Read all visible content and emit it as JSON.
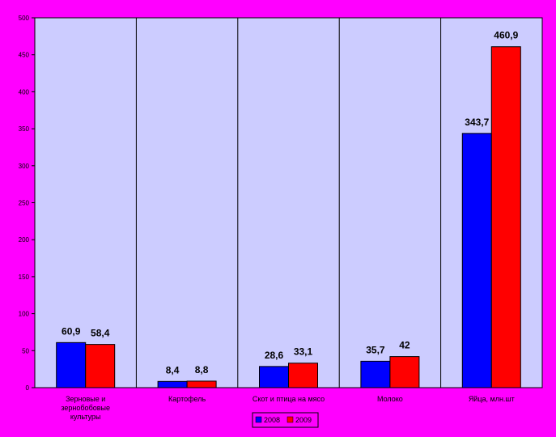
{
  "chart_data": {
    "type": "bar",
    "title": "",
    "xlabel": "",
    "ylabel": "",
    "ylim": [
      0,
      500
    ],
    "ytick_step": 50,
    "grid": false,
    "legend_position": "bottom",
    "categories": [
      "Зерновые и зернобобовые культуры",
      "Картофель",
      "Скот и птица на мясо",
      "Молоко",
      "Яйца, млн.шт"
    ],
    "category_lines": [
      [
        "Зерновые и",
        "зернобобовые",
        "культуры"
      ],
      [
        "Картофель"
      ],
      [
        "Скот и птица на мясо"
      ],
      [
        "Молоко"
      ],
      [
        "Яйца, млн.шт"
      ]
    ],
    "series": [
      {
        "name": "2008",
        "color": "#0000ff",
        "values": [
          60.9,
          8.4,
          28.6,
          35.7,
          343.7
        ],
        "labels": [
          "60,9",
          "8,4",
          "28,6",
          "35,7",
          "343,7"
        ]
      },
      {
        "name": "2009",
        "color": "#ff0000",
        "values": [
          58.4,
          8.8,
          33.1,
          42,
          460.9
        ],
        "labels": [
          "58,4",
          "8,8",
          "33,1",
          "42",
          "460,9"
        ]
      }
    ],
    "colors": {
      "page_background": "#ff00ff",
      "plot_background": "#ccccff"
    }
  }
}
